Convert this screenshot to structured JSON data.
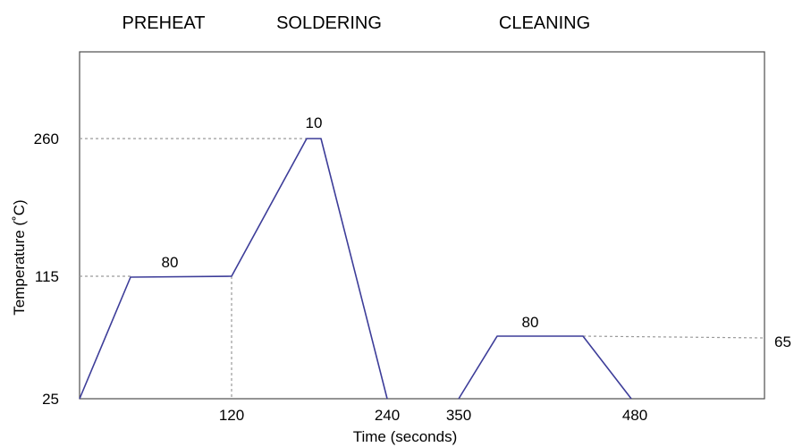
{
  "chart_data": {
    "type": "line",
    "phases": [
      "PREHEAT",
      "SOLDERING",
      "CLEANING"
    ],
    "xlabel": "Time (seconds)",
    "ylabel": "Temperature (˚C)",
    "x_ticks": [
      "120",
      "240",
      "350",
      "480"
    ],
    "y_ticks": [
      "25",
      "115",
      "260"
    ],
    "right_label": "65",
    "annotations": [
      "80",
      "10",
      "80"
    ],
    "series": [
      {
        "segments": [
          [
            [
              0,
              25
            ],
            [
              40,
              115
            ],
            [
              120,
              116
            ],
            [
              180,
              260
            ],
            [
              190,
              260
            ],
            [
              240,
              25
            ]
          ],
          [
            [
              350,
              25
            ],
            [
              385,
              65
            ],
            [
              435,
              65
            ],
            [
              480,
              25
            ]
          ]
        ]
      }
    ],
    "color": "#3d3d99"
  }
}
